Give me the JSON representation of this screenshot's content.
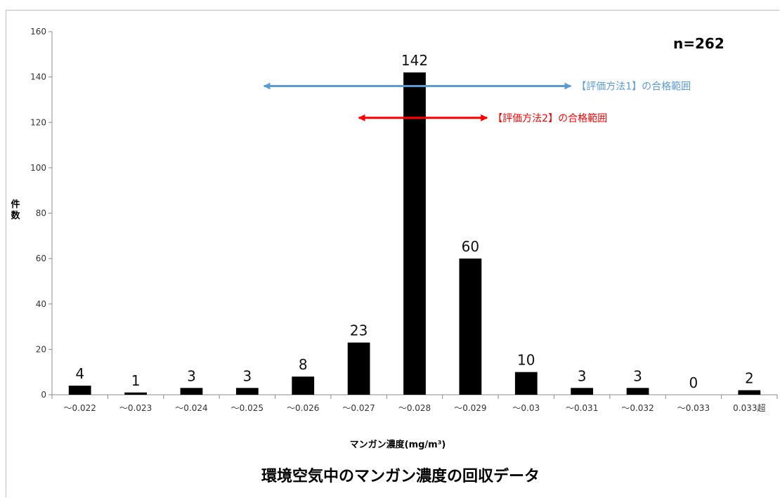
{
  "chart_data": {
    "type": "bar",
    "title": "環境空気中のマンガン濃度の回収データ",
    "xlabel": "マンガン濃度(mg/m³)",
    "ylabel": "件数",
    "ylim": [
      0,
      160
    ],
    "yticks": [
      0,
      20,
      40,
      60,
      80,
      100,
      120,
      140,
      160
    ],
    "grid": false,
    "categories": [
      "～0.022",
      "～0.023",
      "～0.024",
      "～0.025",
      "～0.026",
      "～0.027",
      "～0.028",
      "～0.029",
      "～0.03",
      "～0.031",
      "～0.032",
      "～0.033",
      "0.033超"
    ],
    "values": [
      4,
      1,
      3,
      3,
      8,
      23,
      142,
      60,
      10,
      3,
      3,
      0,
      2
    ],
    "bar_color": "#000000",
    "annotations": {
      "sample_size": "n=262",
      "ranges": [
        {
          "label": "【評価方法1】の合格範囲",
          "color": "#5b9bd5",
          "y": 136,
          "from_category_index": 3.8,
          "to_category_index": 9.3
        },
        {
          "label": "【評価方法2】の合格範囲",
          "color": "#ff0000",
          "y": 122,
          "from_category_index": 5.5,
          "to_category_index": 7.8
        }
      ]
    }
  }
}
